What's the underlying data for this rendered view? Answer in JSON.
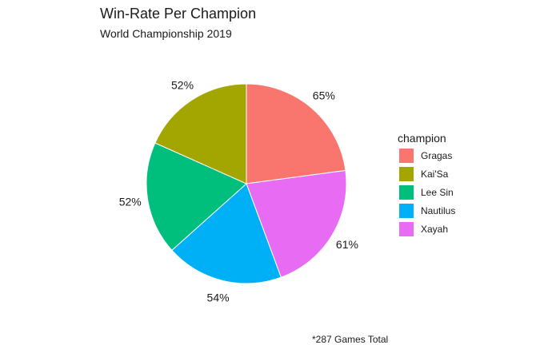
{
  "chart_data": {
    "type": "pie",
    "title": "Win-Rate Per Champion",
    "subtitle": "World Championship 2019",
    "caption": "*287 Games Total",
    "legend": {
      "title": "champion",
      "placement": "right"
    },
    "slices": [
      {
        "name": "Gragas",
        "value": 65,
        "label": "65%",
        "color": "#F8766D"
      },
      {
        "name": "Xayah",
        "value": 61,
        "label": "61%",
        "color": "#E76BF3"
      },
      {
        "name": "Nautilus",
        "value": 54,
        "label": "54%",
        "color": "#00B0F6"
      },
      {
        "name": "Lee Sin",
        "value": 52,
        "label": "52%",
        "color": "#00BF7D"
      },
      {
        "name": "Kai'Sa",
        "value": 52,
        "label": "52%",
        "color": "#A3A500"
      }
    ],
    "legend_order": [
      "Gragas",
      "Kai'Sa",
      "Lee Sin",
      "Nautilus",
      "Xayah"
    ]
  }
}
